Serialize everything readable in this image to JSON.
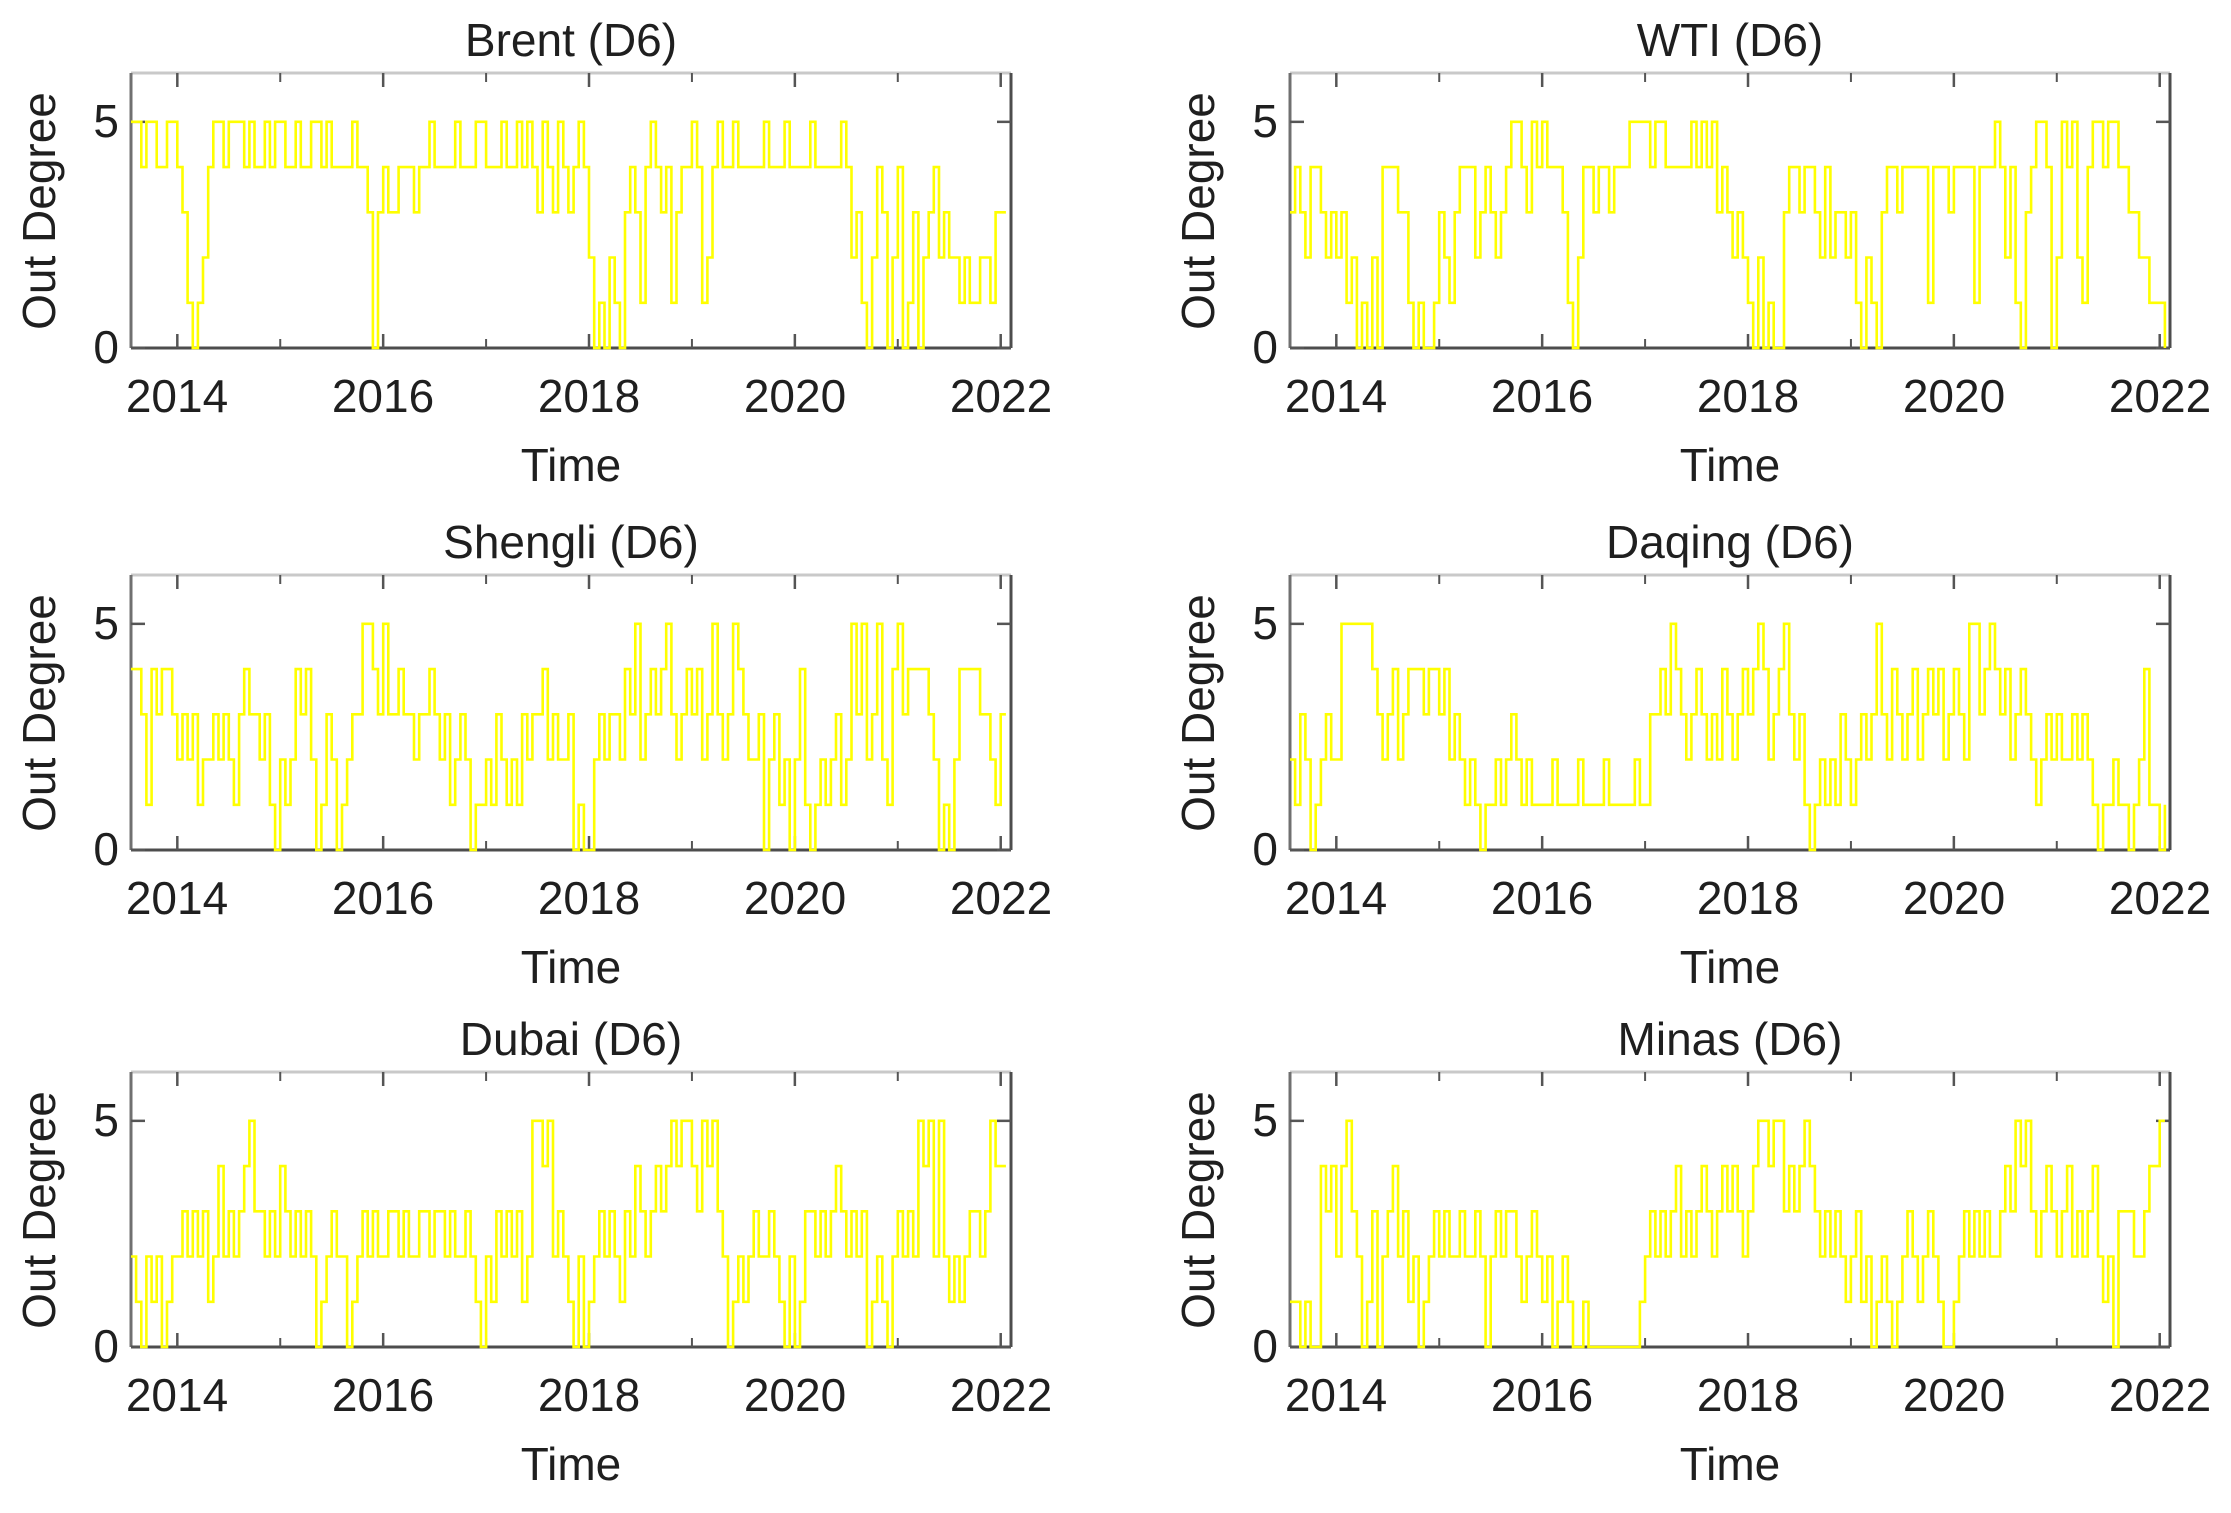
{
  "axes": {
    "ylabel": "Out Degree",
    "xlabel": "Time",
    "ytick_labels": [
      "5",
      "0"
    ],
    "xtick_labels": [
      "2014",
      "2016",
      "2018",
      "2020",
      "2022"
    ]
  },
  "style": {
    "line_color": "#ffff00",
    "text_color": "#1f1f1f",
    "spine_color": "#4d4d4d",
    "spine_left_color": "#707070",
    "spine_top_color": "#c9c9c9",
    "tick_color": "#555555",
    "background": "#ffffff"
  },
  "chart_data": [
    {
      "type": "line",
      "title": "Brent (D6)",
      "ylabel": "Out Degree",
      "xlabel": "Time",
      "xlim": [
        2013.55,
        2022.1
      ],
      "ylim": [
        0,
        6.08
      ],
      "yticks": [
        0,
        5
      ],
      "xticks_labeled": [
        2014,
        2016,
        2018,
        2020,
        2022
      ],
      "xticks_minor": [
        2015,
        2017,
        2019,
        2021
      ],
      "line_color": "#ffff00",
      "x_start": 2013.55,
      "x_step": 0.05,
      "values": [
        5,
        5,
        4,
        5,
        5,
        4,
        4,
        5,
        5,
        4,
        3,
        1,
        0,
        1,
        2,
        4,
        5,
        5,
        4,
        5,
        5,
        5,
        4,
        5,
        4,
        4,
        5,
        4,
        5,
        5,
        4,
        4,
        5,
        4,
        4,
        5,
        5,
        4,
        5,
        4,
        4,
        4,
        4,
        5,
        4,
        4,
        3,
        0,
        3,
        4,
        3,
        3,
        4,
        4,
        4,
        3,
        4,
        4,
        5,
        4,
        4,
        4,
        4,
        5,
        4,
        4,
        4,
        5,
        5,
        4,
        4,
        4,
        5,
        4,
        4,
        5,
        4,
        5,
        4,
        3,
        5,
        4,
        3,
        5,
        4,
        3,
        4,
        5,
        4,
        2,
        0,
        1,
        0,
        2,
        1,
        0,
        3,
        4,
        3,
        1,
        4,
        5,
        4,
        3,
        4,
        1,
        3,
        4,
        4,
        5,
        4,
        1,
        2,
        4,
        5,
        4,
        4,
        5,
        4,
        4,
        4,
        4,
        4,
        5,
        4,
        4,
        4,
        5,
        4,
        4,
        4,
        4,
        5,
        4,
        4,
        4,
        4,
        4,
        5,
        4,
        2,
        3,
        1,
        0,
        2,
        4,
        3,
        0,
        2,
        4,
        0,
        1,
        3,
        0,
        2,
        3,
        4,
        2,
        3,
        2,
        2,
        1,
        2,
        1,
        1,
        2,
        2,
        1,
        3,
        3,
        3
      ]
    },
    {
      "type": "line",
      "title": "WTI (D6)",
      "ylabel": "Out Degree",
      "xlabel": "Time",
      "xlim": [
        2013.55,
        2022.1
      ],
      "ylim": [
        0,
        6.08
      ],
      "yticks": [
        0,
        5
      ],
      "xticks_labeled": [
        2014,
        2016,
        2018,
        2020,
        2022
      ],
      "xticks_minor": [
        2015,
        2017,
        2019,
        2021
      ],
      "line_color": "#ffff00",
      "x_start": 2013.55,
      "x_step": 0.05,
      "values": [
        3,
        4,
        3,
        2,
        4,
        4,
        3,
        2,
        3,
        2,
        3,
        1,
        2,
        0,
        1,
        0,
        2,
        0,
        4,
        4,
        4,
        3,
        3,
        1,
        0,
        1,
        0,
        0,
        1,
        3,
        2,
        1,
        3,
        4,
        4,
        4,
        2,
        3,
        4,
        3,
        2,
        3,
        4,
        5,
        5,
        4,
        3,
        5,
        4,
        5,
        4,
        4,
        4,
        3,
        1,
        0,
        2,
        4,
        4,
        3,
        4,
        4,
        3,
        4,
        4,
        4,
        5,
        5,
        5,
        5,
        4,
        5,
        5,
        4,
        4,
        4,
        4,
        4,
        5,
        4,
        5,
        4,
        5,
        3,
        4,
        3,
        2,
        3,
        2,
        1,
        0,
        2,
        0,
        1,
        0,
        0,
        3,
        4,
        4,
        3,
        4,
        4,
        3,
        2,
        4,
        2,
        3,
        3,
        2,
        3,
        1,
        0,
        2,
        1,
        0,
        3,
        4,
        4,
        3,
        4,
        4,
        4,
        4,
        4,
        1,
        4,
        4,
        4,
        3,
        4,
        4,
        4,
        4,
        1,
        4,
        4,
        4,
        5,
        4,
        2,
        4,
        1,
        0,
        3,
        4,
        5,
        5,
        4,
        0,
        2,
        5,
        4,
        5,
        2,
        1,
        4,
        5,
        5,
        4,
        5,
        5,
        4,
        4,
        3,
        3,
        2,
        2,
        1,
        1,
        1,
        0
      ]
    },
    {
      "type": "line",
      "title": "Shengli (D6)",
      "ylabel": "Out Degree",
      "xlabel": "Time",
      "xlim": [
        2013.55,
        2022.1
      ],
      "ylim": [
        0,
        6.08
      ],
      "yticks": [
        0,
        5
      ],
      "xticks_labeled": [
        2014,
        2016,
        2018,
        2020,
        2022
      ],
      "xticks_minor": [
        2015,
        2017,
        2019,
        2021
      ],
      "line_color": "#ffff00",
      "x_start": 2013.55,
      "x_step": 0.05,
      "values": [
        4,
        4,
        3,
        1,
        4,
        3,
        4,
        4,
        3,
        2,
        3,
        2,
        3,
        1,
        2,
        2,
        3,
        2,
        3,
        2,
        1,
        3,
        4,
        3,
        3,
        2,
        3,
        1,
        0,
        2,
        1,
        2,
        4,
        3,
        4,
        2,
        0,
        1,
        3,
        2,
        0,
        1,
        2,
        3,
        3,
        5,
        5,
        4,
        3,
        5,
        3,
        3,
        4,
        3,
        3,
        2,
        3,
        3,
        4,
        3,
        2,
        3,
        1,
        2,
        3,
        2,
        0,
        1,
        1,
        2,
        1,
        3,
        2,
        1,
        2,
        1,
        3,
        2,
        3,
        3,
        4,
        2,
        3,
        2,
        2,
        3,
        0,
        1,
        0,
        0,
        2,
        3,
        2,
        3,
        3,
        2,
        4,
        3,
        5,
        2,
        3,
        4,
        3,
        4,
        5,
        3,
        2,
        3,
        4,
        3,
        4,
        2,
        3,
        5,
        3,
        2,
        3,
        5,
        4,
        3,
        2,
        2,
        3,
        0,
        2,
        3,
        1,
        2,
        0,
        2,
        4,
        1,
        0,
        1,
        2,
        1,
        2,
        3,
        1,
        2,
        5,
        3,
        5,
        2,
        3,
        5,
        2,
        1,
        4,
        5,
        3,
        4,
        4,
        4,
        4,
        3,
        2,
        0,
        1,
        0,
        2,
        4,
        4,
        4,
        4,
        3,
        3,
        2,
        1,
        3,
        3
      ]
    },
    {
      "type": "line",
      "title": "Daqing (D6)",
      "ylabel": "Out Degree",
      "xlabel": "Time",
      "xlim": [
        2013.55,
        2022.1
      ],
      "ylim": [
        0,
        6.08
      ],
      "yticks": [
        0,
        5
      ],
      "xticks_labeled": [
        2014,
        2016,
        2018,
        2020,
        2022
      ],
      "xticks_minor": [
        2015,
        2017,
        2019,
        2021
      ],
      "line_color": "#ffff00",
      "x_start": 2013.55,
      "x_step": 0.05,
      "values": [
        2,
        1,
        3,
        2,
        0,
        1,
        2,
        3,
        2,
        2,
        5,
        5,
        5,
        5,
        5,
        5,
        4,
        3,
        2,
        3,
        4,
        2,
        3,
        4,
        4,
        4,
        3,
        4,
        4,
        3,
        4,
        2,
        3,
        2,
        1,
        2,
        1,
        0,
        1,
        1,
        2,
        1,
        2,
        3,
        2,
        1,
        2,
        1,
        1,
        1,
        1,
        2,
        1,
        1,
        1,
        1,
        2,
        1,
        1,
        1,
        1,
        2,
        1,
        1,
        1,
        1,
        1,
        2,
        1,
        1,
        3,
        3,
        4,
        3,
        5,
        4,
        3,
        2,
        3,
        4,
        3,
        2,
        3,
        2,
        4,
        3,
        2,
        3,
        4,
        3,
        4,
        5,
        4,
        2,
        3,
        4,
        5,
        3,
        2,
        3,
        1,
        0,
        1,
        2,
        1,
        2,
        1,
        3,
        2,
        1,
        2,
        3,
        2,
        3,
        5,
        3,
        2,
        4,
        3,
        2,
        3,
        4,
        2,
        3,
        4,
        3,
        4,
        2,
        3,
        4,
        3,
        2,
        5,
        5,
        3,
        4,
        5,
        4,
        3,
        4,
        2,
        3,
        4,
        3,
        2,
        1,
        2,
        3,
        2,
        3,
        2,
        2,
        3,
        2,
        3,
        2,
        1,
        0,
        1,
        1,
        2,
        1,
        1,
        0,
        1,
        2,
        4,
        1,
        1,
        0,
        1
      ]
    },
    {
      "type": "line",
      "title": "Dubai (D6)",
      "ylabel": "Out Degree",
      "xlabel": "Time",
      "xlim": [
        2013.55,
        2022.1
      ],
      "ylim": [
        0,
        6.08
      ],
      "yticks": [
        0,
        5
      ],
      "xticks_labeled": [
        2014,
        2016,
        2018,
        2020,
        2022
      ],
      "xticks_minor": [
        2015,
        2017,
        2019,
        2021
      ],
      "line_color": "#ffff00",
      "x_start": 2013.55,
      "x_step": 0.05,
      "values": [
        2,
        1,
        0,
        2,
        1,
        2,
        0,
        1,
        2,
        2,
        3,
        2,
        3,
        2,
        3,
        1,
        2,
        4,
        2,
        3,
        2,
        3,
        4,
        5,
        3,
        3,
        2,
        3,
        2,
        4,
        3,
        2,
        3,
        2,
        3,
        2,
        0,
        1,
        2,
        3,
        2,
        2,
        0,
        1,
        2,
        3,
        2,
        3,
        2,
        2,
        3,
        3,
        2,
        3,
        2,
        2,
        3,
        3,
        2,
        3,
        3,
        2,
        3,
        2,
        2,
        3,
        2,
        1,
        0,
        2,
        1,
        3,
        2,
        3,
        2,
        3,
        1,
        2,
        5,
        5,
        4,
        5,
        2,
        3,
        2,
        1,
        0,
        2,
        0,
        1,
        2,
        3,
        2,
        3,
        2,
        1,
        3,
        2,
        4,
        3,
        2,
        3,
        4,
        3,
        4,
        5,
        4,
        5,
        5,
        4,
        3,
        5,
        4,
        5,
        3,
        2,
        0,
        1,
        2,
        1,
        2,
        3,
        2,
        2,
        3,
        2,
        1,
        0,
        2,
        0,
        1,
        3,
        3,
        2,
        3,
        2,
        3,
        4,
        3,
        2,
        3,
        2,
        3,
        0,
        1,
        2,
        1,
        0,
        2,
        3,
        2,
        3,
        2,
        5,
        4,
        5,
        2,
        5,
        2,
        1,
        2,
        1,
        2,
        3,
        3,
        2,
        3,
        5,
        4,
        4,
        4
      ]
    },
    {
      "type": "line",
      "title": "Minas (D6)",
      "ylabel": "Out Degree",
      "xlabel": "Time",
      "xlim": [
        2013.55,
        2022.1
      ],
      "ylim": [
        0,
        6.08
      ],
      "yticks": [
        0,
        5
      ],
      "xticks_labeled": [
        2014,
        2016,
        2018,
        2020,
        2022
      ],
      "xticks_minor": [
        2015,
        2017,
        2019,
        2021
      ],
      "line_color": "#ffff00",
      "x_start": 2013.55,
      "x_step": 0.05,
      "values": [
        1,
        1,
        0,
        1,
        0,
        0,
        4,
        3,
        4,
        2,
        4,
        5,
        3,
        2,
        0,
        1,
        3,
        0,
        2,
        3,
        4,
        2,
        3,
        1,
        2,
        0,
        1,
        2,
        3,
        2,
        3,
        2,
        2,
        3,
        2,
        2,
        3,
        2,
        0,
        2,
        3,
        2,
        3,
        3,
        2,
        1,
        2,
        3,
        2,
        1,
        2,
        0,
        1,
        2,
        1,
        0,
        0,
        1,
        0,
        0,
        0,
        0,
        0,
        0,
        0,
        0,
        0,
        0,
        1,
        2,
        3,
        2,
        3,
        2,
        3,
        4,
        2,
        3,
        2,
        3,
        4,
        3,
        2,
        3,
        4,
        3,
        4,
        3,
        2,
        3,
        4,
        5,
        5,
        4,
        5,
        5,
        3,
        4,
        3,
        4,
        5,
        4,
        3,
        2,
        3,
        2,
        3,
        2,
        1,
        2,
        3,
        1,
        2,
        0,
        1,
        2,
        1,
        0,
        1,
        2,
        3,
        2,
        1,
        2,
        3,
        2,
        1,
        0,
        0,
        1,
        2,
        3,
        2,
        3,
        2,
        3,
        2,
        2,
        3,
        4,
        3,
        5,
        4,
        5,
        3,
        2,
        3,
        4,
        3,
        2,
        3,
        4,
        2,
        3,
        2,
        3,
        4,
        2,
        1,
        2,
        0,
        3,
        3,
        3,
        2,
        2,
        3,
        4,
        4,
        5,
        5
      ]
    }
  ]
}
